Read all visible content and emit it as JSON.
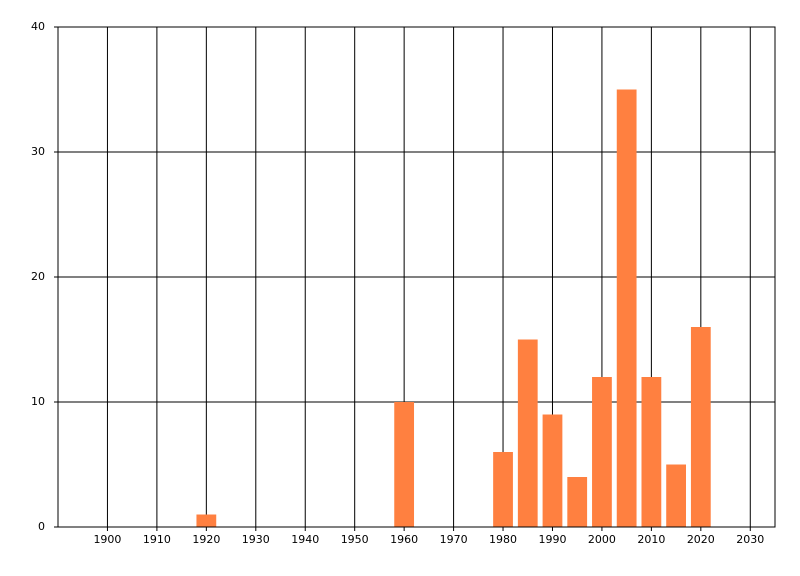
{
  "chart_data": {
    "type": "bar",
    "x": [
      1920,
      1960,
      1980,
      1985,
      1990,
      1995,
      2000,
      2005,
      2010,
      2015,
      2020
    ],
    "values": [
      1,
      10,
      6,
      15,
      9,
      4,
      12,
      35,
      12,
      5,
      16
    ],
    "color": "#ff8040",
    "xlim": [
      1890,
      2035
    ],
    "xticks": [
      1900,
      1910,
      1920,
      1930,
      1940,
      1950,
      1960,
      1970,
      1980,
      1990,
      2000,
      2010,
      2020,
      2030
    ],
    "ylim": [
      0,
      40
    ],
    "yticks": [
      0,
      10,
      20,
      30,
      40
    ],
    "grid": true
  }
}
